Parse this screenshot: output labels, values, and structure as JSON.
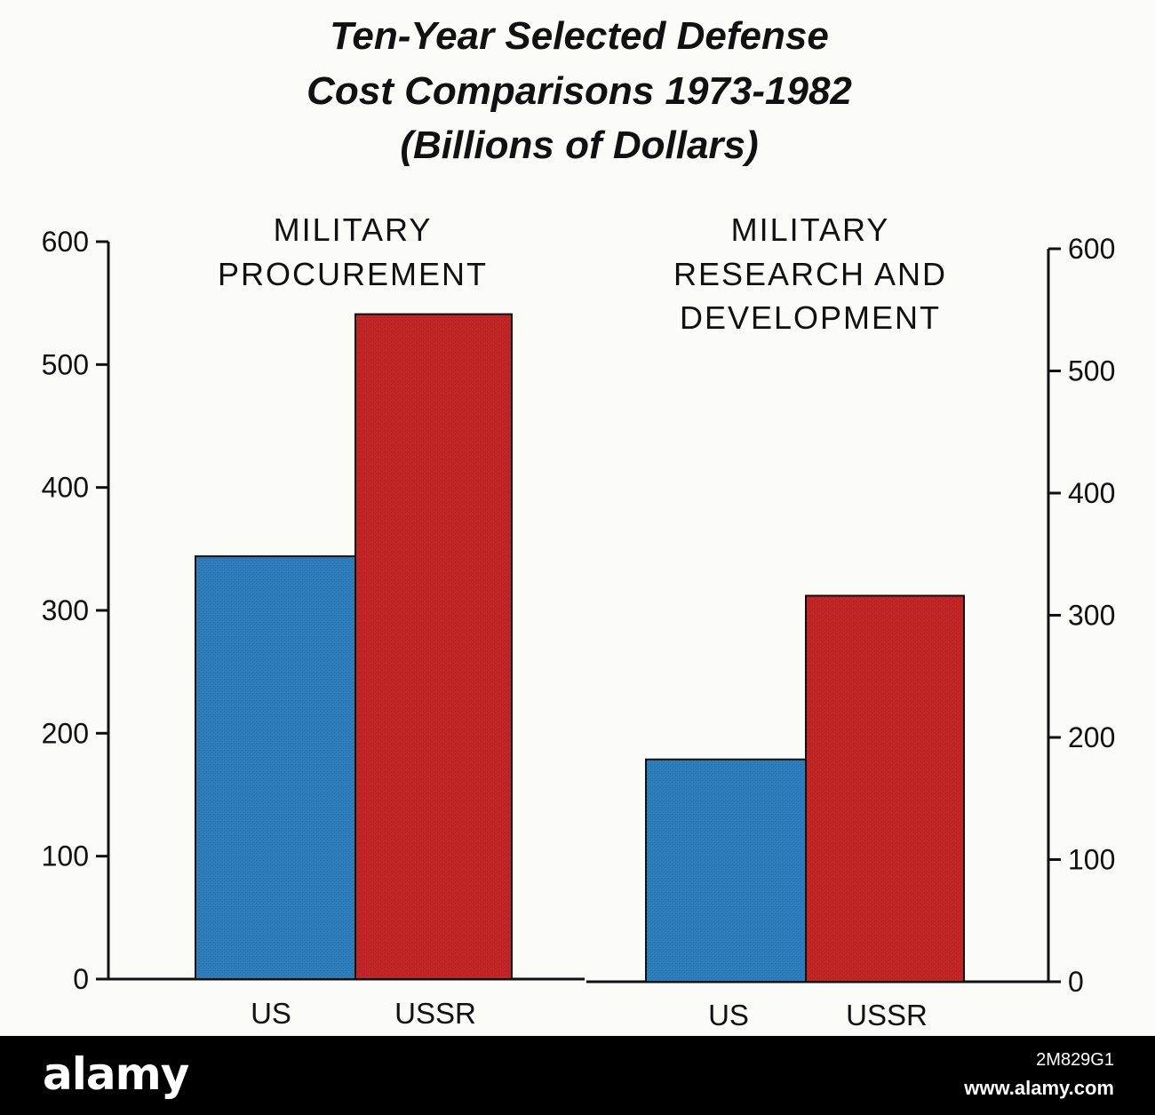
{
  "chart_data": {
    "type": "bar",
    "title_lines": [
      "Ten-Year Selected Defense",
      "Cost Comparisons 1973-1982",
      "(Billions of Dollars)"
    ],
    "ylim": [
      0,
      600
    ],
    "y_ticks": [
      0,
      100,
      200,
      300,
      400,
      500,
      600
    ],
    "grid": false,
    "colors": {
      "US": "#2e7fbe",
      "USSR": "#c42626"
    },
    "panels": [
      {
        "title_lines": [
          "MILITARY",
          "PROCUREMENT"
        ],
        "categories": [
          "US",
          "USSR"
        ],
        "values": [
          344,
          541
        ],
        "axis_side": "left"
      },
      {
        "title_lines": [
          "MILITARY",
          "RESEARCH AND",
          "DEVELOPMENT"
        ],
        "categories": [
          "US",
          "USSR"
        ],
        "values": [
          182,
          316
        ],
        "axis_side": "right"
      }
    ]
  },
  "watermark": {
    "logo_text": "alamy",
    "image_id": "2M829G1",
    "url": "www.alamy.com"
  }
}
